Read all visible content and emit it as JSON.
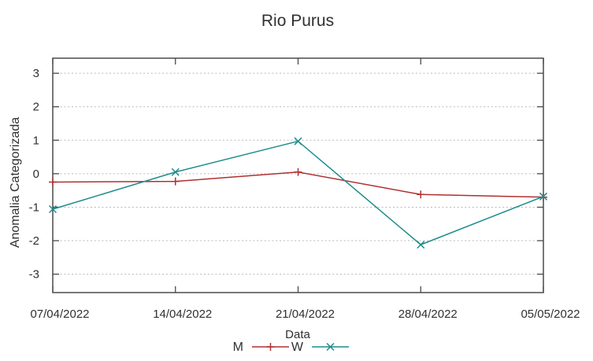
{
  "chart_data": {
    "type": "line",
    "title": "Rio Purus",
    "xlabel": "Data",
    "ylabel": "Anomalia Categorizada",
    "categories": [
      "07/04/2022",
      "14/04/2022",
      "21/04/2022",
      "28/04/2022",
      "05/05/2022"
    ],
    "yticks": [
      3,
      2,
      1,
      0,
      -1,
      -2,
      -3
    ],
    "ylim": [
      -3.55,
      3.45
    ],
    "grid": "horizontal dotted gridlines at every integer",
    "legend_position": "bottom-center",
    "series": [
      {
        "name": "M",
        "color": "#b03030",
        "marker": "plus",
        "values": [
          -0.25,
          -0.23,
          0.05,
          -0.62,
          -0.7
        ]
      },
      {
        "name": "W",
        "color": "#1e8c8c",
        "marker": "cross",
        "values": [
          -1.06,
          0.05,
          0.97,
          -2.12,
          -0.68
        ]
      }
    ],
    "colors": {
      "axis": "#4a4a4a",
      "grid": "#b8b8b8",
      "text": "#303030",
      "background": "#ffffff"
    }
  }
}
